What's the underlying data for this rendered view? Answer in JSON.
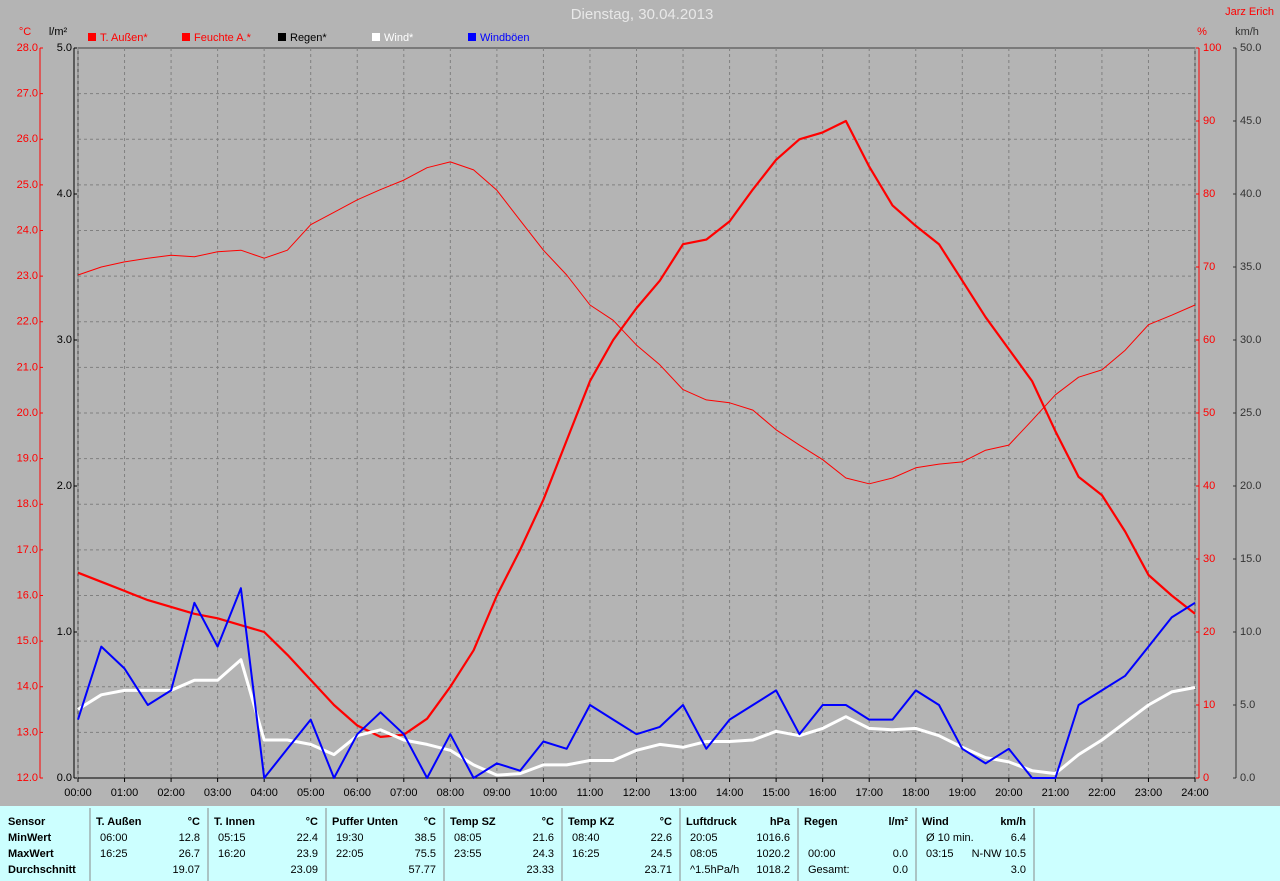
{
  "chart_data": {
    "type": "line",
    "title": "Dienstag, 30.04.2013",
    "author": "Jarz Erich",
    "y_label": "°C",
    "y2_label": "l/m²",
    "y3_label": "%",
    "y4_label": "km/h",
    "x": [
      0,
      0.5,
      1,
      1.5,
      2,
      2.5,
      3,
      3.5,
      4,
      4.5,
      5,
      5.5,
      6,
      6.5,
      7,
      7.5,
      8,
      8.5,
      9,
      9.5,
      10,
      10.5,
      11,
      11.5,
      12,
      12.5,
      13,
      13.5,
      14,
      14.5,
      15,
      15.5,
      16,
      16.5,
      17,
      17.5,
      18,
      18.5,
      19,
      19.5,
      20,
      20.5,
      21,
      21.5,
      22,
      22.5,
      23,
      23.5,
      24
    ],
    "xlim": [
      0,
      24
    ],
    "xticks": [
      {
        "value": 0,
        "label": "00:00"
      },
      {
        "value": 1,
        "label": "01:00"
      },
      {
        "value": 2,
        "label": "02:00"
      },
      {
        "value": 3,
        "label": "03:00"
      },
      {
        "value": 4,
        "label": "04:00"
      },
      {
        "value": 5,
        "label": "05:00"
      },
      {
        "value": 6,
        "label": "06:00"
      },
      {
        "value": 7,
        "label": "07:00"
      },
      {
        "value": 8,
        "label": "08:00"
      },
      {
        "value": 9,
        "label": "09:00"
      },
      {
        "value": 10,
        "label": "10:00"
      },
      {
        "value": 11,
        "label": "11:00"
      },
      {
        "value": 12,
        "label": "12:00"
      },
      {
        "value": 13,
        "label": "13:00"
      },
      {
        "value": 14,
        "label": "14:00"
      },
      {
        "value": 15,
        "label": "15:00"
      },
      {
        "value": 16,
        "label": "16:00"
      },
      {
        "value": 17,
        "label": "17:00"
      },
      {
        "value": 18,
        "label": "18:00"
      },
      {
        "value": 19,
        "label": "19:00"
      },
      {
        "value": 20,
        "label": "20:00"
      },
      {
        "value": 21,
        "label": "21:00"
      },
      {
        "value": 22,
        "label": "22:00"
      },
      {
        "value": 23,
        "label": "23:00"
      },
      {
        "value": 24,
        "label": "24:00"
      }
    ],
    "ylim": [
      12,
      28
    ],
    "yticks": [
      {
        "value": 12,
        "label": "12.0"
      },
      {
        "value": 13,
        "label": "13.0"
      },
      {
        "value": 14,
        "label": "14.0"
      },
      {
        "value": 15,
        "label": "15.0"
      },
      {
        "value": 16,
        "label": "16.0"
      },
      {
        "value": 17,
        "label": "17.0"
      },
      {
        "value": 18,
        "label": "18.0"
      },
      {
        "value": 19,
        "label": "19.0"
      },
      {
        "value": 20,
        "label": "20.0"
      },
      {
        "value": 21,
        "label": "21.0"
      },
      {
        "value": 22,
        "label": "22.0"
      },
      {
        "value": 23,
        "label": "23.0"
      },
      {
        "value": 24,
        "label": "24.0"
      },
      {
        "value": 25,
        "label": "25.0"
      },
      {
        "value": 26,
        "label": "26.0"
      },
      {
        "value": 27,
        "label": "27.0"
      },
      {
        "value": 28,
        "label": "28.0"
      }
    ],
    "y2lim": [
      0,
      5
    ],
    "y2ticks": [
      {
        "value": 0,
        "label": "0.0"
      },
      {
        "value": 1,
        "label": "1.0"
      },
      {
        "value": 2,
        "label": "2.0"
      },
      {
        "value": 3,
        "label": "3.0"
      },
      {
        "value": 4,
        "label": "4.0"
      },
      {
        "value": 5,
        "label": "5.0"
      }
    ],
    "y3lim": [
      0,
      100
    ],
    "y3ticks": [
      0,
      10,
      20,
      30,
      40,
      50,
      60,
      70,
      80,
      90,
      100
    ],
    "y4lim": [
      0,
      50
    ],
    "y4ticks": [
      {
        "value": 0,
        "label": "0.0"
      },
      {
        "value": 5,
        "label": "5.0"
      },
      {
        "value": 10,
        "label": "10.0"
      },
      {
        "value": 15,
        "label": "15.0"
      },
      {
        "value": 20,
        "label": "20.0"
      },
      {
        "value": 25,
        "label": "25.0"
      },
      {
        "value": 30,
        "label": "30.0"
      },
      {
        "value": 35,
        "label": "35.0"
      },
      {
        "value": 40,
        "label": "40.0"
      },
      {
        "value": 45,
        "label": "45.0"
      },
      {
        "value": 50,
        "label": "50.0"
      }
    ],
    "grid": true,
    "series": [
      {
        "name": "T. Außen*",
        "color": "#ff0000",
        "axis": "y",
        "width": 2.2,
        "values": [
          16.5,
          16.3,
          16.1,
          15.9,
          15.75,
          15.6,
          15.5,
          15.35,
          15.2,
          14.7,
          14.15,
          13.6,
          13.15,
          12.9,
          12.95,
          13.3,
          14.0,
          14.8,
          16.0,
          17.0,
          18.1,
          19.4,
          20.7,
          21.6,
          22.3,
          22.9,
          23.7,
          23.8,
          24.2,
          24.9,
          25.55,
          26.0,
          26.15,
          26.4,
          25.4,
          24.55,
          24.1,
          23.7,
          22.9,
          22.1,
          21.4,
          20.7,
          19.6,
          18.6,
          18.2,
          17.4,
          16.45,
          16.0,
          15.6
        ]
      },
      {
        "name": "Feuchte A.*",
        "color": "#ff0000",
        "axis": "y3",
        "width": 1,
        "values": [
          68.9,
          70.0,
          70.7,
          71.2,
          71.6,
          71.4,
          72.1,
          72.3,
          71.2,
          72.3,
          75.8,
          77.5,
          79.2,
          80.6,
          81.9,
          83.6,
          84.4,
          83.3,
          80.5,
          76.4,
          72.3,
          68.9,
          64.8,
          62.7,
          59.3,
          56.6,
          53.2,
          51.8,
          51.4,
          50.4,
          47.7,
          45.6,
          43.6,
          41.1,
          40.3,
          41.1,
          42.5,
          43.0,
          43.3,
          44.9,
          45.6,
          49.0,
          52.5,
          54.9,
          55.9,
          58.6,
          62.1,
          63.4,
          64.8
        ]
      },
      {
        "name": "Regen*",
        "color": "#000000",
        "axis": "y2",
        "width": 1,
        "values": [
          0,
          0,
          0,
          0,
          0,
          0,
          0,
          0,
          0,
          0,
          0,
          0,
          0,
          0,
          0,
          0,
          0,
          0,
          0,
          0,
          0,
          0,
          0,
          0,
          0,
          0,
          0,
          0,
          0,
          0,
          0,
          0,
          0,
          0,
          0,
          0,
          0,
          0,
          0,
          0,
          0,
          0,
          0,
          0,
          0,
          0,
          0,
          0,
          0
        ]
      },
      {
        "name": "Wind*",
        "color": "#ffffff",
        "axis": "y4",
        "width": 3,
        "values": [
          4.7,
          5.7,
          6.0,
          6.0,
          6.0,
          6.7,
          6.7,
          8.1,
          2.6,
          2.6,
          2.3,
          1.6,
          2.9,
          3.3,
          2.6,
          2.3,
          1.9,
          0.9,
          0.2,
          0.3,
          0.9,
          0.9,
          1.2,
          1.2,
          1.9,
          2.3,
          2.1,
          2.5,
          2.5,
          2.6,
          3.2,
          2.9,
          3.4,
          4.2,
          3.4,
          3.3,
          3.4,
          2.9,
          2.1,
          1.4,
          1.1,
          0.5,
          0.3,
          1.6,
          2.6,
          3.8,
          5.0,
          5.9,
          6.2
        ]
      },
      {
        "name": "Windböen",
        "color": "#0000ff",
        "axis": "y4",
        "width": 2,
        "values": [
          4,
          9,
          7.5,
          5,
          6,
          12,
          9,
          13,
          0,
          2,
          4,
          0,
          3,
          4.5,
          3,
          0,
          3,
          0,
          1,
          0.5,
          2.5,
          2,
          5,
          4,
          3,
          3.5,
          5,
          2,
          4,
          5,
          6,
          3,
          5,
          5,
          4,
          4,
          6,
          5,
          2,
          1,
          2,
          0,
          0,
          5,
          6,
          7,
          9,
          11,
          12
        ]
      }
    ]
  },
  "table": {
    "corner": "Sensor",
    "row_labels": [
      "MinWert",
      "MaxWert",
      "Durchschnitt"
    ],
    "groups": [
      {
        "header": "T. Außen",
        "unit": "°C",
        "rows": [
          [
            "06:00",
            "12.8"
          ],
          [
            "16:25",
            "26.7"
          ],
          [
            null,
            "19.07"
          ]
        ]
      },
      {
        "header": "T. Innen",
        "unit": "°C",
        "rows": [
          [
            "05:15",
            "22.4"
          ],
          [
            "16:20",
            "23.9"
          ],
          [
            null,
            "23.09"
          ]
        ]
      },
      {
        "header": "Puffer Unten",
        "unit": "°C",
        "rows": [
          [
            "19:30",
            "38.5"
          ],
          [
            "22:05",
            "75.5"
          ],
          [
            null,
            "57.77"
          ]
        ]
      },
      {
        "header": "Temp SZ",
        "unit": "°C",
        "rows": [
          [
            "08:05",
            "21.6"
          ],
          [
            "23:55",
            "24.3"
          ],
          [
            null,
            "23.33"
          ]
        ]
      },
      {
        "header": "Temp KZ",
        "unit": "°C",
        "rows": [
          [
            "08:40",
            "22.6"
          ],
          [
            "16:25",
            "24.5"
          ],
          [
            null,
            "23.71"
          ]
        ]
      },
      {
        "header": "Luftdruck",
        "unit": "hPa",
        "rows": [
          [
            "20:05",
            "1016.6"
          ],
          [
            "08:05",
            "1020.2"
          ],
          [
            "^1.5hPa/h",
            "1018.2"
          ]
        ]
      },
      {
        "header": "Regen",
        "unit": "l/m²",
        "rows": [
          [
            null,
            null
          ],
          [
            "00:00",
            "0.0"
          ],
          [
            "Gesamt:",
            "0.0"
          ]
        ]
      },
      {
        "header": "Wind",
        "unit": "km/h",
        "rows": [
          [
            "Ø 10 min.",
            "6.4"
          ],
          [
            "03:15",
            "N-NW 10.5"
          ],
          [
            null,
            "3.0"
          ]
        ]
      }
    ]
  }
}
